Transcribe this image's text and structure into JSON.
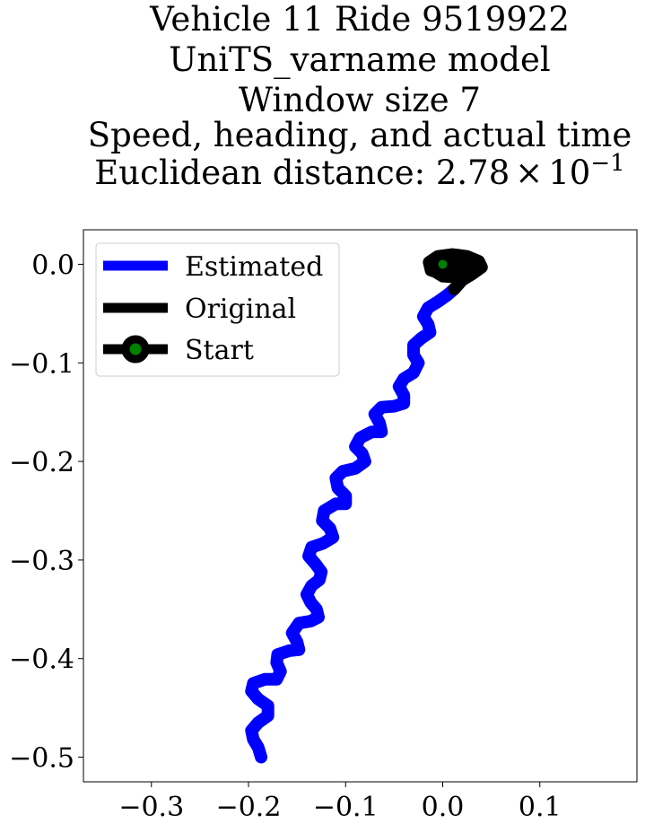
{
  "chart_data": {
    "type": "line",
    "title_lines": [
      "Vehicle 11 Ride 9519922",
      "UniTS_varname model",
      "Window size 7",
      "Speed, heading, and actual time"
    ],
    "title_metric_prefix": "Euclidean distance: 2.78",
    "title_metric_times": "×",
    "title_metric_base": "10",
    "title_metric_exp": "−1",
    "xlabel": "",
    "ylabel": "",
    "xlim": [
      -0.37,
      0.2
    ],
    "ylim": [
      -0.525,
      0.035
    ],
    "xticks": [
      -0.3,
      -0.2,
      -0.1,
      0.0,
      0.1
    ],
    "xtick_labels": [
      "−0.3",
      "−0.2",
      "−0.1",
      "0.0",
      "0.1"
    ],
    "yticks": [
      0.0,
      -0.1,
      -0.2,
      -0.3,
      -0.4,
      -0.5
    ],
    "ytick_labels": [
      "0.0",
      "−0.1",
      "−0.2",
      "−0.3",
      "−0.4",
      "−0.5"
    ],
    "grid": false,
    "legend_position": "top-left",
    "series": [
      {
        "name": "Estimated",
        "color": "#0000ff",
        "points": [
          [
            -0.187,
            -0.5
          ],
          [
            -0.19,
            -0.49
          ],
          [
            -0.195,
            -0.482
          ],
          [
            -0.197,
            -0.473
          ],
          [
            -0.19,
            -0.465
          ],
          [
            -0.18,
            -0.458
          ],
          [
            -0.18,
            -0.448
          ],
          [
            -0.19,
            -0.441
          ],
          [
            -0.197,
            -0.433
          ],
          [
            -0.195,
            -0.425
          ],
          [
            -0.183,
            -0.421
          ],
          [
            -0.171,
            -0.421
          ],
          [
            -0.167,
            -0.413
          ],
          [
            -0.171,
            -0.404
          ],
          [
            -0.17,
            -0.396
          ],
          [
            -0.158,
            -0.392
          ],
          [
            -0.148,
            -0.391
          ],
          [
            -0.15,
            -0.383
          ],
          [
            -0.155,
            -0.374
          ],
          [
            -0.148,
            -0.364
          ],
          [
            -0.136,
            -0.362
          ],
          [
            -0.128,
            -0.358
          ],
          [
            -0.13,
            -0.35
          ],
          [
            -0.136,
            -0.343
          ],
          [
            -0.14,
            -0.335
          ],
          [
            -0.135,
            -0.326
          ],
          [
            -0.127,
            -0.32
          ],
          [
            -0.125,
            -0.312
          ],
          [
            -0.131,
            -0.304
          ],
          [
            -0.138,
            -0.296
          ],
          [
            -0.135,
            -0.287
          ],
          [
            -0.123,
            -0.283
          ],
          [
            -0.113,
            -0.277
          ],
          [
            -0.116,
            -0.268
          ],
          [
            -0.124,
            -0.26
          ],
          [
            -0.122,
            -0.25
          ],
          [
            -0.11,
            -0.243
          ],
          [
            -0.1,
            -0.243
          ],
          [
            -0.1,
            -0.235
          ],
          [
            -0.108,
            -0.227
          ],
          [
            -0.11,
            -0.217
          ],
          [
            -0.103,
            -0.21
          ],
          [
            -0.09,
            -0.207
          ],
          [
            -0.08,
            -0.2
          ],
          [
            -0.083,
            -0.192
          ],
          [
            -0.09,
            -0.185
          ],
          [
            -0.085,
            -0.176
          ],
          [
            -0.073,
            -0.17
          ],
          [
            -0.063,
            -0.17
          ],
          [
            -0.065,
            -0.161
          ],
          [
            -0.07,
            -0.152
          ],
          [
            -0.063,
            -0.145
          ],
          [
            -0.05,
            -0.144
          ],
          [
            -0.04,
            -0.141
          ],
          [
            -0.04,
            -0.133
          ],
          [
            -0.045,
            -0.124
          ],
          [
            -0.04,
            -0.116
          ],
          [
            -0.03,
            -0.11
          ],
          [
            -0.025,
            -0.1
          ],
          [
            -0.03,
            -0.092
          ],
          [
            -0.03,
            -0.082
          ],
          [
            -0.022,
            -0.075
          ],
          [
            -0.013,
            -0.069
          ],
          [
            -0.015,
            -0.061
          ],
          [
            -0.02,
            -0.053
          ],
          [
            -0.015,
            -0.044
          ],
          [
            -0.005,
            -0.038
          ],
          [
            0.005,
            -0.031
          ],
          [
            0.012,
            -0.025
          ]
        ]
      },
      {
        "name": "Original",
        "color": "#000000",
        "points": [
          [
            0.012,
            -0.025
          ],
          [
            0.02,
            -0.016
          ],
          [
            0.03,
            -0.01
          ],
          [
            0.04,
            -0.003
          ],
          [
            0.037,
            0.003
          ],
          [
            0.025,
            0.008
          ],
          [
            0.01,
            0.01
          ],
          [
            -0.005,
            0.008
          ],
          [
            -0.014,
            0.002
          ],
          [
            -0.012,
            -0.006
          ],
          [
            0.0,
            -0.01
          ],
          [
            0.014,
            -0.008
          ],
          [
            0.025,
            -0.004
          ],
          [
            0.017,
            0.001
          ],
          [
            0.004,
            0.003
          ],
          [
            -0.006,
            0.0
          ],
          [
            -0.01,
            -0.006
          ],
          [
            0.0,
            -0.012
          ],
          [
            0.015,
            -0.013
          ],
          [
            0.028,
            -0.007
          ],
          [
            0.034,
            0.0
          ],
          [
            0.024,
            0.007
          ],
          [
            0.008,
            0.009
          ],
          [
            0.0,
            0.0
          ]
        ]
      }
    ],
    "start": {
      "name": "Start",
      "x": 0.0,
      "y": 0.0,
      "marker_color": "#008000",
      "edge_color": "#000000"
    }
  }
}
